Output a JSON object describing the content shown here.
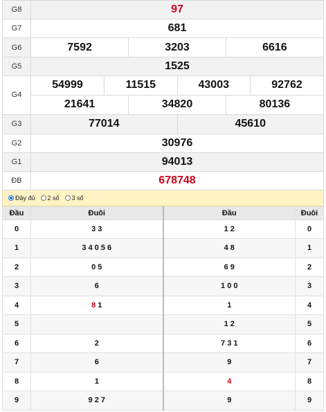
{
  "prizes": {
    "g8": {
      "label": "G8",
      "value": "97"
    },
    "g7": {
      "label": "G7",
      "value": "681"
    },
    "g6": {
      "label": "G6",
      "values": [
        "7592",
        "3203",
        "6616"
      ]
    },
    "g5": {
      "label": "G5",
      "value": "1525"
    },
    "g4": {
      "label": "G4",
      "values": [
        "54999",
        "11515",
        "43003",
        "92762",
        "21641",
        "34820",
        "80136"
      ]
    },
    "g3": {
      "label": "G3",
      "values": [
        "77014",
        "45610"
      ]
    },
    "g2": {
      "label": "G2",
      "value": "30976"
    },
    "g1": {
      "label": "G1",
      "value": "94013"
    },
    "db": {
      "label": "ĐB",
      "value": "678748"
    }
  },
  "options": {
    "full": "Đầy đủ",
    "two": "2 số",
    "three": "3 số"
  },
  "loto": {
    "headers": {
      "dau_left": "Đầu",
      "duoi_left": "Đuôi",
      "dau_right": "Đầu",
      "duoi_right": "Đuôi"
    },
    "rows": [
      {
        "k": "0",
        "tail": "3 3",
        "head": "1 2",
        "k2": "0"
      },
      {
        "k": "1",
        "tail": "3 4 0 5 6",
        "head": "4 8",
        "k2": "1"
      },
      {
        "k": "2",
        "tail": "0 5",
        "head": "6 9",
        "k2": "2"
      },
      {
        "k": "3",
        "tail": "6",
        "head": "1 0 0",
        "k2": "3"
      },
      {
        "k": "4",
        "tail_red": "8",
        "tail": " 1",
        "head": "1",
        "k2": "4"
      },
      {
        "k": "5",
        "tail": "",
        "head": "1 2",
        "k2": "5"
      },
      {
        "k": "6",
        "tail": "2",
        "head": "7 3 1",
        "k2": "6"
      },
      {
        "k": "7",
        "tail": "6",
        "head": "9",
        "k2": "7"
      },
      {
        "k": "8",
        "tail": "1",
        "head_red": "4",
        "head": "",
        "k2": "8"
      },
      {
        "k": "9",
        "tail": "9 2 7",
        "head": "9",
        "k2": "9"
      }
    ]
  }
}
